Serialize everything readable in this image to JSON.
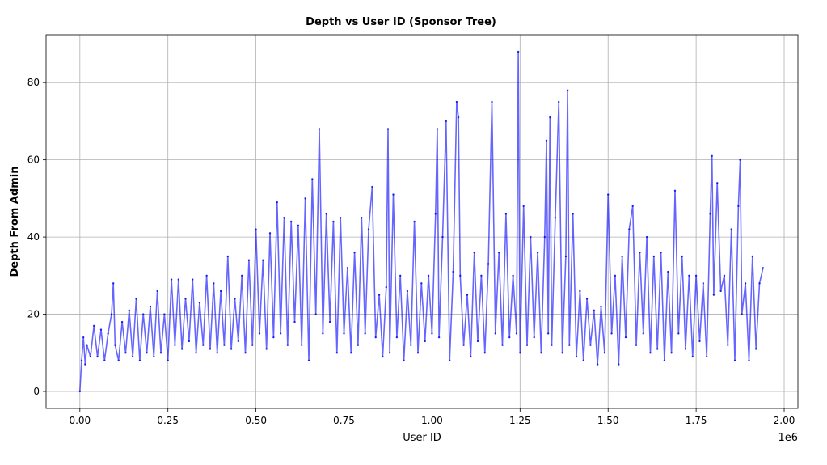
{
  "chart_data": {
    "type": "line",
    "title": "Depth vs User ID (Sponsor Tree)",
    "xlabel": "User ID",
    "ylabel": "Depth From Admin",
    "x_offset_label": "1e6",
    "xlim": [
      -96000,
      2039000
    ],
    "ylim": [
      -4.4,
      92.4
    ],
    "xticks": [
      0,
      250000,
      500000,
      750000,
      1000000,
      1250000,
      1500000,
      1750000,
      2000000
    ],
    "xtick_labels": [
      "0.00",
      "0.25",
      "0.50",
      "0.75",
      "1.00",
      "1.25",
      "1.50",
      "1.75",
      "2.00"
    ],
    "yticks": [
      0,
      20,
      40,
      60,
      80
    ],
    "ytick_labels": [
      "0",
      "20",
      "40",
      "60",
      "80"
    ],
    "grid": true,
    "line_color": "#0000ff",
    "marker": "dot",
    "points": [
      [
        0,
        0
      ],
      [
        5000,
        8
      ],
      [
        10000,
        14
      ],
      [
        15000,
        7
      ],
      [
        20000,
        12
      ],
      [
        30000,
        9
      ],
      [
        40000,
        17
      ],
      [
        50000,
        9
      ],
      [
        60000,
        16
      ],
      [
        70000,
        8
      ],
      [
        80000,
        15
      ],
      [
        90000,
        20
      ],
      [
        95000,
        28
      ],
      [
        100000,
        12
      ],
      [
        110000,
        8
      ],
      [
        120000,
        18
      ],
      [
        130000,
        10
      ],
      [
        140000,
        21
      ],
      [
        150000,
        9
      ],
      [
        160000,
        24
      ],
      [
        170000,
        8
      ],
      [
        180000,
        20
      ],
      [
        190000,
        10
      ],
      [
        200000,
        22
      ],
      [
        210000,
        9
      ],
      [
        220000,
        26
      ],
      [
        230000,
        10
      ],
      [
        240000,
        20
      ],
      [
        250000,
        8
      ],
      [
        260000,
        29
      ],
      [
        270000,
        12
      ],
      [
        280000,
        29
      ],
      [
        290000,
        11
      ],
      [
        300000,
        24
      ],
      [
        310000,
        13
      ],
      [
        320000,
        29
      ],
      [
        330000,
        10
      ],
      [
        340000,
        23
      ],
      [
        350000,
        12
      ],
      [
        360000,
        30
      ],
      [
        370000,
        11
      ],
      [
        380000,
        28
      ],
      [
        390000,
        10
      ],
      [
        400000,
        26
      ],
      [
        410000,
        12
      ],
      [
        420000,
        35
      ],
      [
        430000,
        11
      ],
      [
        440000,
        24
      ],
      [
        450000,
        13
      ],
      [
        460000,
        30
      ],
      [
        470000,
        10
      ],
      [
        480000,
        34
      ],
      [
        490000,
        12
      ],
      [
        500000,
        42
      ],
      [
        510000,
        15
      ],
      [
        520000,
        34
      ],
      [
        530000,
        11
      ],
      [
        540000,
        41
      ],
      [
        550000,
        14
      ],
      [
        560000,
        49
      ],
      [
        570000,
        15
      ],
      [
        580000,
        45
      ],
      [
        590000,
        12
      ],
      [
        600000,
        44
      ],
      [
        610000,
        18
      ],
      [
        620000,
        43
      ],
      [
        630000,
        12
      ],
      [
        640000,
        50
      ],
      [
        650000,
        8
      ],
      [
        660000,
        55
      ],
      [
        670000,
        20
      ],
      [
        680000,
        68
      ],
      [
        690000,
        15
      ],
      [
        700000,
        46
      ],
      [
        710000,
        18
      ],
      [
        720000,
        44
      ],
      [
        730000,
        10
      ],
      [
        740000,
        45
      ],
      [
        750000,
        15
      ],
      [
        760000,
        32
      ],
      [
        770000,
        10
      ],
      [
        780000,
        36
      ],
      [
        790000,
        12
      ],
      [
        800000,
        45
      ],
      [
        810000,
        15
      ],
      [
        820000,
        42
      ],
      [
        830000,
        53
      ],
      [
        840000,
        14
      ],
      [
        850000,
        25
      ],
      [
        860000,
        9
      ],
      [
        870000,
        27
      ],
      [
        875000,
        68
      ],
      [
        880000,
        10
      ],
      [
        890000,
        51
      ],
      [
        900000,
        14
      ],
      [
        910000,
        30
      ],
      [
        920000,
        8
      ],
      [
        930000,
        26
      ],
      [
        940000,
        12
      ],
      [
        950000,
        44
      ],
      [
        960000,
        10
      ],
      [
        970000,
        28
      ],
      [
        980000,
        13
      ],
      [
        990000,
        30
      ],
      [
        1000000,
        15
      ],
      [
        1010000,
        46
      ],
      [
        1015000,
        68
      ],
      [
        1020000,
        14
      ],
      [
        1030000,
        40
      ],
      [
        1040000,
        70
      ],
      [
        1050000,
        8
      ],
      [
        1060000,
        31
      ],
      [
        1070000,
        75
      ],
      [
        1075000,
        71
      ],
      [
        1080000,
        30
      ],
      [
        1090000,
        12
      ],
      [
        1100000,
        25
      ],
      [
        1110000,
        9
      ],
      [
        1120000,
        36
      ],
      [
        1130000,
        13
      ],
      [
        1140000,
        30
      ],
      [
        1150000,
        10
      ],
      [
        1160000,
        33
      ],
      [
        1170000,
        75
      ],
      [
        1180000,
        15
      ],
      [
        1190000,
        36
      ],
      [
        1200000,
        12
      ],
      [
        1210000,
        46
      ],
      [
        1220000,
        14
      ],
      [
        1230000,
        30
      ],
      [
        1240000,
        15
      ],
      [
        1245000,
        88
      ],
      [
        1250000,
        10
      ],
      [
        1260000,
        48
      ],
      [
        1270000,
        12
      ],
      [
        1280000,
        40
      ],
      [
        1290000,
        14
      ],
      [
        1300000,
        36
      ],
      [
        1310000,
        10
      ],
      [
        1320000,
        40
      ],
      [
        1325000,
        65
      ],
      [
        1330000,
        15
      ],
      [
        1335000,
        71
      ],
      [
        1340000,
        12
      ],
      [
        1350000,
        45
      ],
      [
        1360000,
        75
      ],
      [
        1370000,
        10
      ],
      [
        1380000,
        35
      ],
      [
        1385000,
        78
      ],
      [
        1390000,
        12
      ],
      [
        1400000,
        46
      ],
      [
        1410000,
        9
      ],
      [
        1420000,
        26
      ],
      [
        1430000,
        8
      ],
      [
        1440000,
        24
      ],
      [
        1450000,
        12
      ],
      [
        1460000,
        21
      ],
      [
        1470000,
        7
      ],
      [
        1480000,
        22
      ],
      [
        1490000,
        10
      ],
      [
        1500000,
        51
      ],
      [
        1510000,
        15
      ],
      [
        1520000,
        30
      ],
      [
        1530000,
        7
      ],
      [
        1540000,
        35
      ],
      [
        1550000,
        14
      ],
      [
        1560000,
        42
      ],
      [
        1570000,
        48
      ],
      [
        1580000,
        12
      ],
      [
        1590000,
        36
      ],
      [
        1600000,
        15
      ],
      [
        1610000,
        40
      ],
      [
        1620000,
        10
      ],
      [
        1630000,
        35
      ],
      [
        1640000,
        11
      ],
      [
        1650000,
        36
      ],
      [
        1660000,
        8
      ],
      [
        1670000,
        31
      ],
      [
        1680000,
        10
      ],
      [
        1690000,
        52
      ],
      [
        1700000,
        15
      ],
      [
        1710000,
        35
      ],
      [
        1720000,
        11
      ],
      [
        1730000,
        30
      ],
      [
        1740000,
        9
      ],
      [
        1750000,
        30
      ],
      [
        1760000,
        13
      ],
      [
        1770000,
        28
      ],
      [
        1780000,
        9
      ],
      [
        1790000,
        46
      ],
      [
        1795000,
        61
      ],
      [
        1800000,
        25
      ],
      [
        1810000,
        54
      ],
      [
        1820000,
        26
      ],
      [
        1830000,
        30
      ],
      [
        1840000,
        12
      ],
      [
        1850000,
        42
      ],
      [
        1860000,
        8
      ],
      [
        1870000,
        48
      ],
      [
        1875000,
        60
      ],
      [
        1880000,
        20
      ],
      [
        1890000,
        28
      ],
      [
        1900000,
        8
      ],
      [
        1910000,
        35
      ],
      [
        1920000,
        11
      ],
      [
        1930000,
        28
      ],
      [
        1940000,
        32
      ]
    ]
  }
}
